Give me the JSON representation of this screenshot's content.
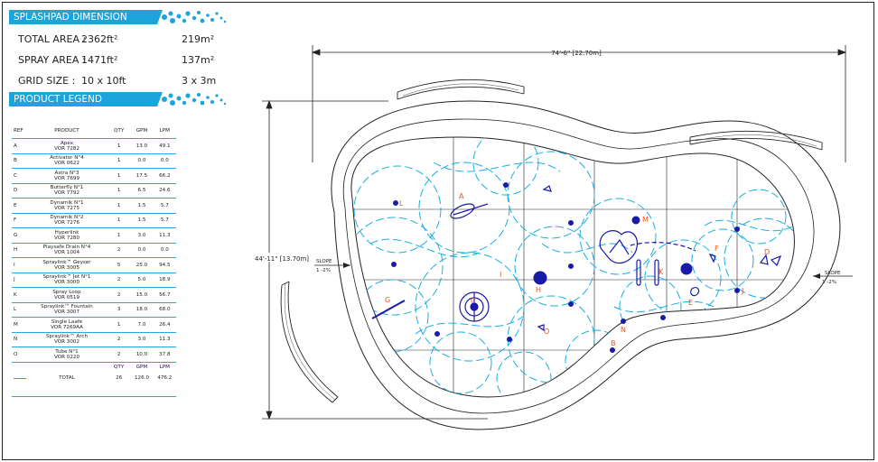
{
  "dimensions": {
    "heading": "SPLASHPAD DIMENSION",
    "total_area": {
      "label": "TOTAL AREA :",
      "imperial": "2362ft²",
      "metric": "219m²"
    },
    "spray_area": {
      "label": "SPRAY AREA :",
      "imperial": "1471ft²",
      "metric": "137m²"
    },
    "grid_size": {
      "label": "GRID SIZE :",
      "imperial": "10 x 10ft",
      "metric": "3 x 3m"
    }
  },
  "legend": {
    "heading": "PRODUCT LEGEND",
    "headers": {
      "ref": "REF",
      "product": "PRODUCT",
      "qty": "QTY",
      "gpm": "GPM",
      "lpm": "LPM"
    },
    "items": [
      {
        "ref": "A",
        "name": "Apex",
        "code": "VOR 7282",
        "qty": "1",
        "gpm": "13.0",
        "lpm": "49.1"
      },
      {
        "ref": "B",
        "name": "Activator N°4",
        "code": "VOR 0622",
        "qty": "1",
        "gpm": "0.0",
        "lpm": "0.0"
      },
      {
        "ref": "C",
        "name": "Astra N°3",
        "code": "VOR 7699",
        "qty": "1",
        "gpm": "17.5",
        "lpm": "66.2"
      },
      {
        "ref": "D",
        "name": "Butterfly N°1",
        "code": "VOR 7792",
        "qty": "1",
        "gpm": "6.5",
        "lpm": "24.6"
      },
      {
        "ref": "E",
        "name": "Dynamik N°1",
        "code": "VOR 7275",
        "qty": "1",
        "gpm": "1.5",
        "lpm": "5.7"
      },
      {
        "ref": "F",
        "name": "Dynamik N°2",
        "code": "VOR 7276",
        "qty": "1",
        "gpm": "1.5",
        "lpm": "5.7"
      },
      {
        "ref": "G",
        "name": "Hyperlink",
        "code": "VOR 7280",
        "qty": "1",
        "gpm": "3.0",
        "lpm": "11.3"
      },
      {
        "ref": "H",
        "name": "Playsafe Drain N°4",
        "code": "VOR 1004",
        "qty": "2",
        "gpm": "0.0",
        "lpm": "0.0"
      },
      {
        "ref": "I",
        "name": "Spraylink™ Geyser",
        "code": "VOR 3005",
        "qty": "5",
        "gpm": "25.0",
        "lpm": "94.5"
      },
      {
        "ref": "J",
        "name": "Spraylink™ Jet N°1",
        "code": "VOR 3000",
        "qty": "2",
        "gpm": "5.0",
        "lpm": "18.9"
      },
      {
        "ref": "K",
        "name": "Spray Loop",
        "code": "VOR 0519",
        "qty": "2",
        "gpm": "15.0",
        "lpm": "56.7"
      },
      {
        "ref": "L",
        "name": "Spraylink™ Fountain",
        "code": "VOR 3007",
        "qty": "3",
        "gpm": "18.0",
        "lpm": "68.0"
      },
      {
        "ref": "M",
        "name": "Single Laafe",
        "code": "VOR 7269AA",
        "qty": "1",
        "gpm": "7.0",
        "lpm": "26.4"
      },
      {
        "ref": "N",
        "name": "Spraylink™ Arch",
        "code": "VOR 3002",
        "qty": "2",
        "gpm": "3.0",
        "lpm": "11.3"
      },
      {
        "ref": "O",
        "name": "Tube N°1",
        "code": "VOR 0220",
        "qty": "2",
        "gpm": "10.0",
        "lpm": "37.8"
      }
    ],
    "total": {
      "label": "TOTAL",
      "qty": "26",
      "gpm": "126.0",
      "lpm": "476.2"
    }
  },
  "plan": {
    "width_dim": "74'-6\" [22.70m]",
    "height_dim": "44'-11\" [13.70m]",
    "slope_left": {
      "word": "SLOPE",
      "value": "1 -2%"
    },
    "slope_right": {
      "word": "SLOPE",
      "value": "1 -2%"
    },
    "markers": [
      "A",
      "B",
      "C",
      "D",
      "E",
      "F",
      "G",
      "H",
      "I",
      "J",
      "K",
      "L",
      "M",
      "N",
      "O"
    ],
    "colors": {
      "spray": "#19aee6",
      "product": "#1a1aa8",
      "label": "#e8561e",
      "outline": "#222222"
    }
  }
}
